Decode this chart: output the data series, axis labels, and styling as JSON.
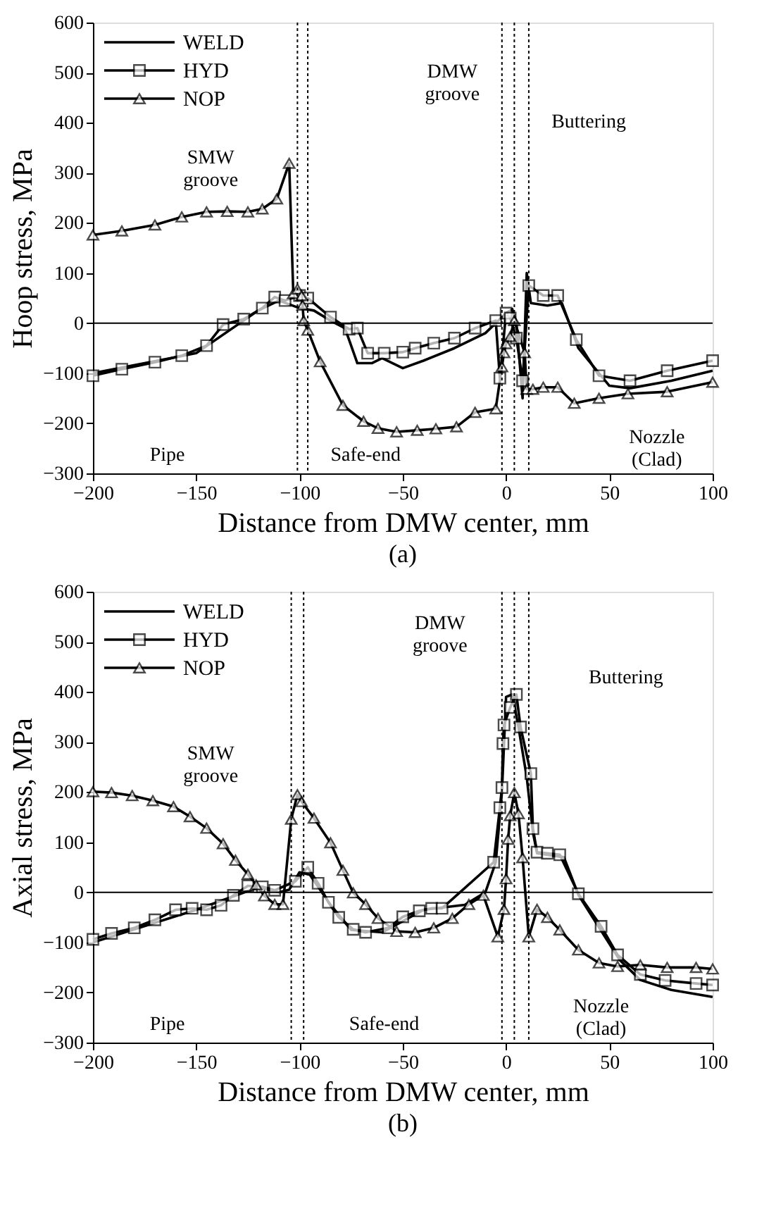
{
  "chart_data": [
    {
      "type": "line",
      "title": "(a)",
      "xlabel": "Distance from DMW center, mm",
      "ylabel": "Hoop stress, MPa",
      "xlim": [
        -200,
        100
      ],
      "ylim": [
        -300,
        600
      ],
      "xticks": [
        -200,
        -150,
        -100,
        -50,
        0,
        50,
        100
      ],
      "yticks": [
        -300,
        -200,
        -100,
        0,
        100,
        200,
        300,
        400,
        500,
        600
      ],
      "grid": false,
      "legend": "top left",
      "line_style": "solid",
      "series": [
        {
          "name": "WELD",
          "color": "#000000",
          "marker": "none",
          "x": [
            -200,
            -150,
            -120,
            -110,
            -100,
            -93,
            -85,
            -78,
            -72,
            -65,
            -60,
            -50,
            -40,
            -25,
            -10,
            0,
            3,
            5,
            8,
            10,
            12,
            20,
            27,
            35,
            50,
            60,
            80,
            100
          ],
          "values": [
            -100,
            -60,
            25,
            45,
            30,
            25,
            5,
            -10,
            -80,
            -80,
            -70,
            -90,
            -75,
            -50,
            -20,
            20,
            28,
            0,
            -150,
            100,
            40,
            35,
            40,
            -50,
            -125,
            -130,
            -115,
            -95
          ]
        },
        {
          "name": "HYD",
          "color": "#000000",
          "marker": "square",
          "x": [
            -200,
            -186,
            -170,
            -157,
            -145,
            -137,
            -127,
            -118,
            -112,
            -107,
            -100,
            -96,
            -85,
            -76,
            -72,
            -67,
            -59,
            -50,
            -44,
            -35,
            -25,
            -15,
            -5,
            -3,
            0,
            2,
            5,
            8,
            11,
            18,
            25,
            34,
            45,
            60,
            78,
            100
          ],
          "values": [
            -105,
            -92,
            -78,
            -65,
            -45,
            -3,
            8,
            30,
            52,
            45,
            55,
            50,
            12,
            -12,
            -10,
            -60,
            -60,
            -58,
            -50,
            -40,
            -30,
            -10,
            5,
            -110,
            20,
            10,
            -30,
            -115,
            75,
            55,
            55,
            -33,
            -105,
            -115,
            -95,
            -75
          ]
        },
        {
          "name": "NOP",
          "color": "#000000",
          "marker": "triangle",
          "x": [
            -200,
            -186,
            -170,
            -157,
            -145,
            -135,
            -125,
            -118,
            -111,
            -105,
            -103,
            -101,
            -99,
            -98.5,
            -98,
            -96,
            -90,
            -79,
            -69,
            -62,
            -53,
            -43,
            -34,
            -24,
            -15,
            -5,
            -2,
            -1,
            0,
            2,
            4,
            9,
            10,
            13,
            18,
            25,
            33,
            45,
            59,
            78,
            100
          ],
          "values": [
            176,
            184,
            196,
            212,
            222,
            223,
            222,
            228,
            248,
            319,
            59,
            68,
            55,
            36,
            5,
            -14,
            -77,
            -164,
            -196,
            -210,
            -217,
            -214,
            -211,
            -207,
            -178,
            -171,
            -87,
            -59,
            -41,
            -27,
            5,
            -59,
            -132,
            -132,
            -128,
            -128,
            -160,
            -150,
            -141,
            -137,
            -118
          ]
        }
      ],
      "ref_lines": [
        {
          "axis": "y",
          "value": 0,
          "line_style": "solid",
          "color": "#000000"
        },
        {
          "axis": "x",
          "value": -101,
          "line_style": "dotted",
          "color": "#000000"
        },
        {
          "axis": "x",
          "value": -96,
          "line_style": "dotted",
          "color": "#000000"
        },
        {
          "axis": "x",
          "value": -2,
          "line_style": "dotted",
          "color": "#000000"
        },
        {
          "axis": "x",
          "value": 4,
          "line_style": "dotted",
          "color": "#000000"
        },
        {
          "axis": "x",
          "value": 11,
          "line_style": "dotted",
          "color": "#000000"
        }
      ],
      "annotations": [
        "SMW\ngroove",
        "DMW\ngroove",
        "Buttering",
        "Pipe",
        "Safe-end",
        "Nozzle\n(Clad)"
      ]
    },
    {
      "type": "line",
      "title": "(b)",
      "xlabel": "Distance from DMW center, mm",
      "ylabel": "Axial stress, MPa",
      "xlim": [
        -200,
        100
      ],
      "ylim": [
        -300,
        600
      ],
      "xticks": [
        -200,
        -150,
        -100,
        -50,
        0,
        50,
        100
      ],
      "yticks": [
        -300,
        -200,
        -100,
        0,
        100,
        200,
        300,
        400,
        500,
        600
      ],
      "grid": false,
      "legend": "top left",
      "line_style": "solid",
      "series": [
        {
          "name": "WELD",
          "color": "#000000",
          "marker": "none",
          "x": [
            -200,
            -150,
            -130,
            -120,
            -110,
            -105,
            -100,
            -95,
            -85,
            -75,
            -60,
            -40,
            -20,
            -10,
            -5,
            -2,
            0,
            3,
            6,
            10,
            13,
            15,
            28,
            35,
            45,
            55,
            65,
            80,
            100
          ],
          "values": [
            -100,
            -35,
            -5,
            10,
            0,
            5,
            40,
            35,
            -25,
            -75,
            -80,
            -35,
            -25,
            0,
            60,
            200,
            390,
            395,
            330,
            230,
            120,
            78,
            70,
            -5,
            -70,
            -135,
            -175,
            -195,
            -209
          ]
        },
        {
          "name": "HYD",
          "color": "#000000",
          "marker": "square",
          "x": [
            -200,
            -191,
            -180,
            -170,
            -160,
            -152,
            -145,
            -138,
            -132,
            -125,
            -118,
            -112,
            -102,
            -96,
            -91,
            -86,
            -81,
            -74,
            -68,
            -57,
            -50,
            -42,
            -36,
            -31,
            -6,
            -3,
            -2,
            -1.5,
            -1,
            2,
            5,
            7,
            12,
            13,
            15,
            20,
            26,
            35,
            46,
            54,
            65,
            77,
            92,
            100
          ],
          "values": [
            -94,
            -82,
            -71,
            -55,
            -35,
            -32,
            -35,
            -26,
            -6,
            13,
            11,
            4,
            22,
            50,
            18,
            -20,
            -50,
            -74,
            -80,
            -71,
            -49,
            -37,
            -32,
            -32,
            60,
            169,
            209,
            297,
            334,
            369,
            395,
            330,
            237,
            127,
            80,
            78,
            75,
            -3,
            -68,
            -125,
            -164,
            -176,
            -182,
            -185
          ]
        },
        {
          "name": "NOP",
          "color": "#000000",
          "marker": "triangle",
          "x": [
            -200,
            -191,
            -181,
            -171,
            -161,
            -153,
            -145,
            -137,
            -131,
            -125,
            -121,
            -117,
            -112,
            -108,
            -104,
            -101,
            -99,
            -93,
            -85,
            -79,
            -74,
            -68,
            -62,
            -53,
            -44,
            -35,
            -26,
            -18,
            -11,
            -4,
            -1,
            0,
            1,
            2,
            4,
            6,
            8,
            11,
            15,
            20,
            26,
            35,
            45,
            54,
            65,
            78,
            92,
            100
          ],
          "values": [
            201,
            199,
            193,
            183,
            171,
            151,
            128,
            97,
            64,
            36,
            15,
            -7,
            -24,
            -24,
            146,
            195,
            181,
            148,
            99,
            44,
            -1,
            -24,
            -52,
            -78,
            -80,
            -71,
            -52,
            -24,
            -6,
            -89,
            -34,
            27,
            106,
            153,
            199,
            157,
            69,
            -89,
            -34,
            -50,
            -75,
            -115,
            -141,
            -148,
            -145,
            -150,
            -150,
            -153
          ]
        }
      ],
      "ref_lines": [
        {
          "axis": "y",
          "value": 0,
          "line_style": "solid",
          "color": "#000000"
        },
        {
          "axis": "x",
          "value": -104,
          "line_style": "dotted",
          "color": "#000000"
        },
        {
          "axis": "x",
          "value": -98,
          "line_style": "dotted",
          "color": "#000000"
        },
        {
          "axis": "x",
          "value": -2,
          "line_style": "dotted",
          "color": "#000000"
        },
        {
          "axis": "x",
          "value": 4,
          "line_style": "dotted",
          "color": "#000000"
        },
        {
          "axis": "x",
          "value": 11,
          "line_style": "dotted",
          "color": "#000000"
        }
      ],
      "annotations": [
        "SMW\ngroove",
        "DMW\ngroove",
        "Buttering",
        "Pipe",
        "Safe-end",
        "Nozzle\n(Clad)"
      ]
    }
  ]
}
